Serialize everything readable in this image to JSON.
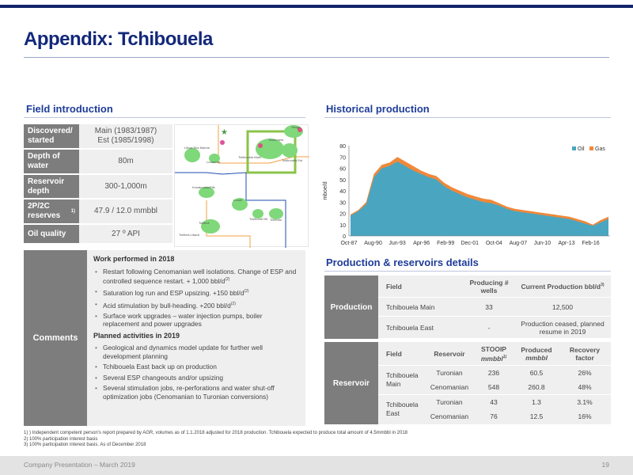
{
  "title": "Appendix: Tchibouela",
  "field_intro": {
    "heading": "Field introduction",
    "rows": [
      {
        "label": "Discovered/ started",
        "value": "Main (1983/1987)\nEst (1985/1998)"
      },
      {
        "label": "Depth of water",
        "value": "80m"
      },
      {
        "label": "Reservoir depth",
        "value": "300-1,000m"
      },
      {
        "label": "2P/2C reserves",
        "label_sup": "1)",
        "value": "47.9 / 12.0 mmbbl"
      },
      {
        "label": "Oil quality",
        "value": "27 º API"
      }
    ]
  },
  "map": {
    "labels": [
      "Yanga",
      "Libwa Ebo Marine",
      "Loussima",
      "Tchibouela Main",
      "Tchibouela Est",
      "Tchibouela",
      "Kouakouala/Elik",
      "Louali",
      "Tchiboudi N5",
      "Tchendo",
      "Tchibeli",
      "Tchibeli-Litanzi"
    ]
  },
  "comments": {
    "label": "Comments",
    "work2018_heading": "Work performed in 2018",
    "work2018": [
      {
        "text": "Restart following Cenomanian well isolations. Change of ESP and controlled sequence restart. + 1,000 bbl/d",
        "sup": "(2)"
      },
      {
        "text": "Saturation log run and ESP upsizing. +150 bbl/d",
        "sup": "(2)"
      },
      {
        "text": "Acid stimulation by bull-heading. +200 bbl/d",
        "sup": "(2)"
      },
      {
        "text": "Surface work upgrades – water injection pumps, boiler replacement and power upgrades",
        "sup": ""
      }
    ],
    "planned2019_heading": "Planned activities in 2019",
    "planned2019": [
      "Geological and dynamics model update for further well development planning",
      "Tchibouela East back up on production",
      "Several ESP changeouts and/or upsizing",
      "Several stimulation jobs, re-perforations and water shut-off optimization jobs (Cenomanian to Turonian conversions)"
    ]
  },
  "historical": {
    "heading": "Historical production"
  },
  "chart_data": {
    "type": "area",
    "ylabel": "mboe/d",
    "ylim": [
      0,
      80
    ],
    "yticks": [
      0,
      10,
      20,
      30,
      40,
      50,
      60,
      70,
      80
    ],
    "xticks": [
      "Oct-87",
      "Aug-90",
      "Jun-93",
      "Apr-96",
      "Feb-99",
      "Dec-01",
      "Oct-04",
      "Aug-07",
      "Jun-10",
      "Apr-13",
      "Feb-16"
    ],
    "legend": [
      "Oil",
      "Gas"
    ],
    "legend_position": "top-right",
    "colors": {
      "oil": "#4aa6c0",
      "gas": "#f0883a"
    },
    "series": [
      {
        "name": "Oil",
        "x": [
          "Oct-87",
          "Oct-88",
          "Oct-89",
          "Aug-90",
          "Aug-91",
          "Aug-92",
          "Jun-93",
          "Jun-94",
          "Jun-95",
          "Apr-96",
          "Apr-97",
          "Apr-98",
          "Feb-99",
          "Feb-00",
          "Feb-01",
          "Dec-01",
          "Dec-02",
          "Dec-03",
          "Oct-04",
          "Oct-05",
          "Oct-06",
          "Aug-07",
          "Aug-08",
          "Aug-09",
          "Jun-10",
          "Jun-11",
          "Jun-12",
          "Apr-13",
          "Apr-14",
          "Apr-15",
          "Feb-16",
          "Feb-17",
          "Feb-18",
          "Dec-18"
        ],
        "values": [
          18,
          22,
          28,
          52,
          60,
          62,
          66,
          62,
          58,
          55,
          52,
          50,
          44,
          40,
          37,
          34,
          32,
          30,
          29,
          27,
          24,
          22,
          21,
          20,
          19,
          18,
          17,
          16,
          15,
          13,
          11,
          9,
          12,
          15
        ]
      },
      {
        "name": "Gas",
        "x": [
          "Oct-87",
          "Oct-88",
          "Oct-89",
          "Aug-90",
          "Aug-91",
          "Aug-92",
          "Jun-93",
          "Jun-94",
          "Jun-95",
          "Apr-96",
          "Apr-97",
          "Apr-98",
          "Feb-99",
          "Feb-00",
          "Feb-01",
          "Dec-01",
          "Dec-02",
          "Dec-03",
          "Oct-04",
          "Oct-05",
          "Oct-06",
          "Aug-07",
          "Aug-08",
          "Aug-09",
          "Jun-10",
          "Jun-11",
          "Jun-12",
          "Apr-13",
          "Apr-14",
          "Apr-15",
          "Feb-16",
          "Feb-17",
          "Feb-18",
          "Dec-18"
        ],
        "values": [
          1,
          1,
          2,
          3,
          3,
          3,
          4,
          4,
          4,
          3,
          3,
          3,
          3,
          3,
          3,
          3,
          3,
          3,
          3,
          2,
          2,
          2,
          2,
          2,
          2,
          2,
          2,
          2,
          2,
          2,
          2,
          1,
          2,
          2
        ]
      }
    ]
  },
  "prod_reservoirs": {
    "heading": "Production & reservoirs details",
    "production": {
      "label": "Production",
      "headers": {
        "field": "Field",
        "wells": "Producing # wells",
        "current": "Current Production bbl/d",
        "current_sup": "3)"
      },
      "rows": [
        {
          "field": "Tchibouela Main",
          "wells": "33",
          "current": "12,500"
        },
        {
          "field": "Tchibouela East",
          "wells": "-",
          "current": "Production ceased, planned resume in 2019"
        }
      ]
    },
    "reservoir": {
      "label": "Reservoir",
      "headers": {
        "field": "Field",
        "reservoir": "Reservoir",
        "stooip": "STOOIP",
        "stooip_unit": "mmbbl",
        "stooip_sup": "1)",
        "produced": "Produced",
        "produced_unit": "mmbbl",
        "recovery": "Recovery factor"
      },
      "groups": [
        {
          "field": "Tchibouela Main",
          "rows": [
            {
              "reservoir": "Turonian",
              "stooip": "236",
              "produced": "60.5",
              "recovery": "26%"
            },
            {
              "reservoir": "Cenomanian",
              "stooip": "548",
              "produced": "260.8",
              "recovery": "48%"
            }
          ]
        },
        {
          "field": "Tchibouela East",
          "rows": [
            {
              "reservoir": "Turonian",
              "stooip": "43",
              "produced": "1.3",
              "recovery": "3.1%"
            },
            {
              "reservoir": "Cenomanian",
              "stooip": "76",
              "produced": "12.5",
              "recovery": "16%"
            }
          ]
        }
      ]
    }
  },
  "footnotes": [
    "1) ) Independent competent person's report prepared by AGR, volumes as of 1.1.2018 adjusted for 2018 production. Tchibouela expected to produce total amount of 4.5mmbbl in 2018",
    "2) 100% participation interest basis",
    "3) 100% participation interest basis. As of December 2018"
  ],
  "footer": {
    "left": "Company Presentation – March 2019",
    "page": "19"
  }
}
